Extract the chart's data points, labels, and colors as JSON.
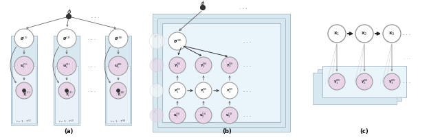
{
  "fig_width": 6.4,
  "fig_height": 2.04,
  "dpi": 100,
  "bg_color": "#ffffff",
  "node_white": "#ffffff",
  "node_purple": "#e8d5e8",
  "node_edge": "#999999",
  "box_outer": "#d8e8f0",
  "box_inner": "#e8f2f8",
  "arrow_col": "#666666",
  "phi_col": "#333333",
  "label_a": "(a)",
  "label_b": "(b)",
  "label_c": "(c)"
}
